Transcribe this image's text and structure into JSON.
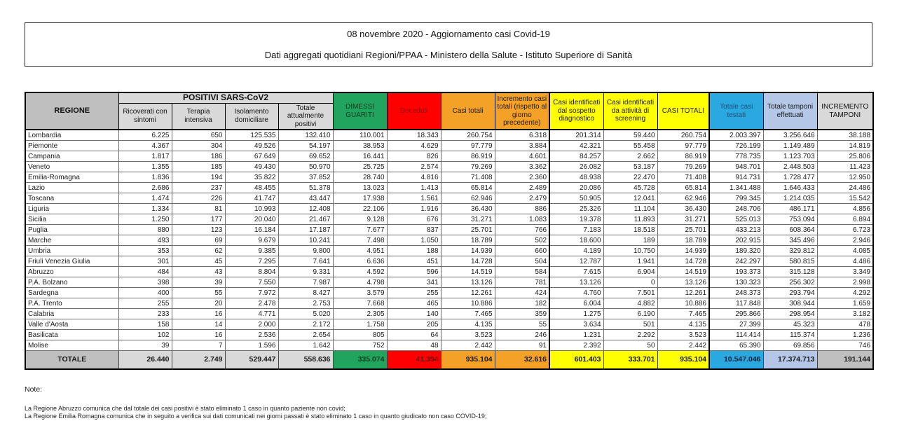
{
  "title": {
    "line1": "08 novembre 2020 - Aggiornamento casi Covid-19",
    "line2": "Dati aggregati quotidiani Regioni/PPAA - Ministero della Salute - Istituto Superiore di Sanità"
  },
  "table": {
    "group_header": "POSITIVI SARS-CoV2",
    "columns": [
      "REGIONE",
      "Ricoverati con sintomi",
      "Terapia intensiva",
      "Isolamento domiciliare",
      "Totale attualmente positivi",
      "DIMESSI GUARITI",
      "Deceduti",
      "Casi totali",
      "Incremento casi totali (rispetto al giorno precedente)",
      "Casi identificati dal sospetto diagnostico",
      "Casi identificati da attività di screening",
      "CASI TOTALI",
      "Totale casi testati",
      "Totale tamponi effettuati",
      "INCREMENTO TAMPONI"
    ],
    "rows": [
      {
        "region": "Lombardia",
        "values": [
          "6.225",
          "650",
          "125.535",
          "132.410",
          "110.001",
          "18.343",
          "260.754",
          "6.318",
          "201.314",
          "59.440",
          "260.754",
          "2.003.397",
          "3.256.646",
          "38.188"
        ]
      },
      {
        "region": "Piemonte",
        "values": [
          "4.367",
          "304",
          "49.526",
          "54.197",
          "38.953",
          "4.629",
          "97.779",
          "3.884",
          "42.321",
          "55.458",
          "97.779",
          "726.199",
          "1.149.489",
          "14.819"
        ]
      },
      {
        "region": "Campania",
        "values": [
          "1.817",
          "186",
          "67.649",
          "69.652",
          "16.441",
          "826",
          "86.919",
          "4.601",
          "84.257",
          "2.662",
          "86.919",
          "778.735",
          "1.123.703",
          "25.806"
        ]
      },
      {
        "region": "Veneto",
        "values": [
          "1.355",
          "185",
          "49.430",
          "50.970",
          "25.725",
          "2.574",
          "79.269",
          "3.362",
          "26.082",
          "53.187",
          "79.269",
          "948.701",
          "2.448.503",
          "11.423"
        ]
      },
      {
        "region": "Emilia-Romagna",
        "values": [
          "1.836",
          "194",
          "35.822",
          "37.852",
          "28.740",
          "4.816",
          "71.408",
          "2.360",
          "48.938",
          "22.470",
          "71.408",
          "914.731",
          "1.728.477",
          "12.950"
        ]
      },
      {
        "region": "Lazio",
        "values": [
          "2.686",
          "237",
          "48.455",
          "51.378",
          "13.023",
          "1.413",
          "65.814",
          "2.489",
          "20.086",
          "45.728",
          "65.814",
          "1.341.488",
          "1.646.433",
          "24.486"
        ]
      },
      {
        "region": "Toscana",
        "values": [
          "1.474",
          "226",
          "41.747",
          "43.447",
          "17.938",
          "1.561",
          "62.946",
          "2.479",
          "50.905",
          "12.041",
          "62.946",
          "799.345",
          "1.214.035",
          "15.542"
        ]
      },
      {
        "region": "Liguria",
        "values": [
          "1.334",
          "81",
          "10.993",
          "12.408",
          "22.106",
          "1.916",
          "36.430",
          "886",
          "25.326",
          "11.104",
          "36.430",
          "248.706",
          "486.171",
          "4.856"
        ]
      },
      {
        "region": "Sicilia",
        "values": [
          "1.250",
          "177",
          "20.040",
          "21.467",
          "9.128",
          "676",
          "31.271",
          "1.083",
          "19.378",
          "11.893",
          "31.271",
          "525.013",
          "753.094",
          "6.894"
        ]
      },
      {
        "region": "Puglia",
        "values": [
          "880",
          "123",
          "16.184",
          "17.187",
          "7.677",
          "837",
          "25.701",
          "766",
          "7.183",
          "18.518",
          "25.701",
          "433.213",
          "608.364",
          "6.723"
        ]
      },
      {
        "region": "Marche",
        "values": [
          "493",
          "69",
          "9.679",
          "10.241",
          "7.498",
          "1.050",
          "18.789",
          "502",
          "18.600",
          "189",
          "18.789",
          "202.915",
          "345.496",
          "2.946"
        ]
      },
      {
        "region": "Umbria",
        "values": [
          "353",
          "62",
          "9.385",
          "9.800",
          "4.951",
          "188",
          "14.939",
          "660",
          "4.189",
          "10.750",
          "14.939",
          "189.320",
          "329.812",
          "4.085"
        ]
      },
      {
        "region": "Friuli Venezia Giulia",
        "values": [
          "301",
          "45",
          "7.295",
          "7.641",
          "6.636",
          "451",
          "14.728",
          "504",
          "12.787",
          "1.941",
          "14.728",
          "242.297",
          "580.815",
          "4.486"
        ]
      },
      {
        "region": "Abruzzo",
        "values": [
          "484",
          "43",
          "8.804",
          "9.331",
          "4.592",
          "596",
          "14.519",
          "584",
          "7.615",
          "6.904",
          "14.519",
          "193.373",
          "315.128",
          "3.349"
        ]
      },
      {
        "region": "P.A. Bolzano",
        "values": [
          "398",
          "39",
          "7.550",
          "7.987",
          "4.798",
          "341",
          "13.126",
          "781",
          "13.126",
          "0",
          "13.126",
          "130.323",
          "256.302",
          "2.998"
        ]
      },
      {
        "region": "Sardegna",
        "values": [
          "400",
          "55",
          "7.972",
          "8.427",
          "3.579",
          "255",
          "12.261",
          "424",
          "4.760",
          "7.501",
          "12.261",
          "248.373",
          "293.794",
          "4.292"
        ]
      },
      {
        "region": "P.A. Trento",
        "values": [
          "255",
          "20",
          "2.478",
          "2.753",
          "7.668",
          "465",
          "10.886",
          "182",
          "6.004",
          "4.882",
          "10.886",
          "117.848",
          "308.944",
          "1.659"
        ]
      },
      {
        "region": "Calabria",
        "values": [
          "233",
          "16",
          "4.771",
          "5.020",
          "2.305",
          "140",
          "7.465",
          "359",
          "1.275",
          "6.190",
          "7.465",
          "295.866",
          "298.954",
          "3.182"
        ]
      },
      {
        "region": "Valle d'Aosta",
        "values": [
          "158",
          "14",
          "2.000",
          "2.172",
          "1.758",
          "205",
          "4.135",
          "55",
          "3.634",
          "501",
          "4.135",
          "27.399",
          "45.323",
          "478"
        ]
      },
      {
        "region": "Basilicata",
        "values": [
          "102",
          "16",
          "2.536",
          "2.654",
          "805",
          "64",
          "3.523",
          "246",
          "1.231",
          "2.292",
          "3.523",
          "114.414",
          "115.374",
          "1.236"
        ]
      },
      {
        "region": "Molise",
        "values": [
          "39",
          "7",
          "1.596",
          "1.642",
          "752",
          "48",
          "2.442",
          "91",
          "2.392",
          "50",
          "2.442",
          "65.390",
          "69.856",
          "746"
        ]
      }
    ],
    "total": {
      "label": "TOTALE",
      "values": [
        "26.440",
        "2.749",
        "529.447",
        "558.636",
        "335.074",
        "41.394",
        "935.104",
        "32.616",
        "601.403",
        "333.701",
        "935.104",
        "10.547.046",
        "17.374.713",
        "191.144"
      ]
    }
  },
  "notes": {
    "heading": "Note:",
    "lines": [
      "La Regione Abruzzo comunica che dal totale dei casi positivi è stato eliminato 1 caso in quanto paziente non covid;",
      "La Regione Emilia Romagna comunica che in seguito a verifica sui dati comunicati nei giorni passati è stato eliminato 1 caso in quanto giudicato non caso COVID-19;"
    ]
  },
  "colors": {
    "header_gray_dark": "#bfbfbf",
    "header_gray_light": "#d9d9d9",
    "green": "#21a45d",
    "red": "#fe0000",
    "orange": "#f3a127",
    "yellow": "#ffff00",
    "cyan": "#29a9e0",
    "light_blue": "#b4c7e7"
  }
}
